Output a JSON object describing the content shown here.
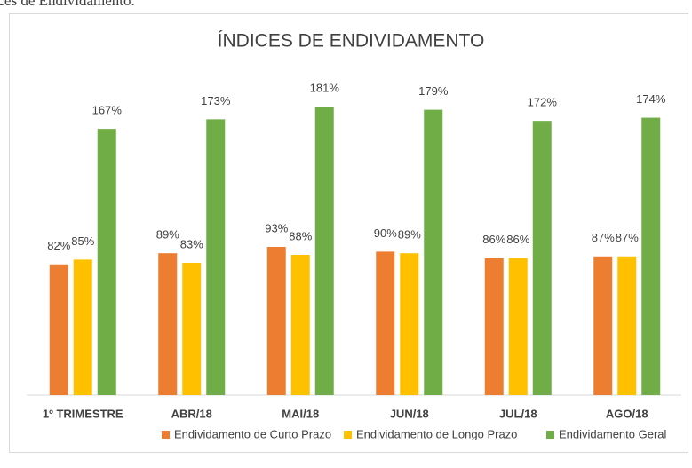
{
  "caption": "Índices de Endividamento.",
  "chart_data": {
    "type": "bar",
    "title": "ÍNDICES DE ENDIVIDAMENTO",
    "categories": [
      "1º TRIMESTRE",
      "ABR/18",
      "MAI/18",
      "JUN/18",
      "JUL/18",
      "AGO/18"
    ],
    "series": [
      {
        "name": "Endividamento de Curto Prazo",
        "color": "#ed7d31",
        "values": [
          82,
          89,
          93,
          90,
          86,
          87
        ],
        "value_labels": [
          "82%",
          "89%",
          "93%",
          "90%",
          "86%",
          "87%"
        ]
      },
      {
        "name": "Endividamento de Longo Prazo",
        "color": "#ffc000",
        "values": [
          85,
          83,
          88,
          89,
          86,
          87
        ],
        "value_labels": [
          "85%",
          "83%",
          "88%",
          "89%",
          "86%",
          "87%"
        ]
      },
      {
        "name": "Endividamento Geral",
        "color": "#70ad47",
        "values": [
          167,
          173,
          181,
          179,
          172,
          174
        ],
        "value_labels": [
          "167%",
          "173%",
          "181%",
          "179%",
          "172%",
          "174%"
        ]
      }
    ],
    "legend": "bottom"
  }
}
